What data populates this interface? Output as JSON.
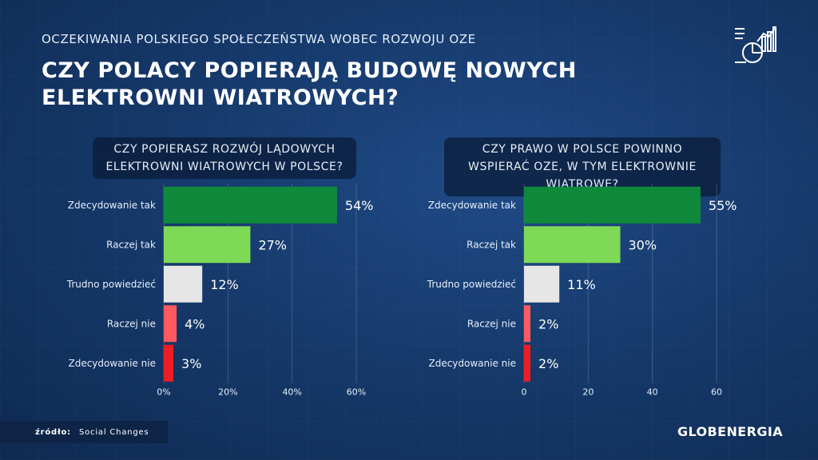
{
  "header": {
    "subtitle": "OCZEKIWANIA POLSKIEGO SPOŁECZEŃSTWA WOBEC ROZWOJU OZE",
    "title": "CZY POLACY POPIERAJĄ BUDOWĘ NOWYCH ELEKTROWNI WIATROWYCH?",
    "icon": "chart-report-icon"
  },
  "chart_data": [
    {
      "type": "bar",
      "orientation": "horizontal",
      "title": "CZY POPIERASZ ROZWÓJ LĄDOWYCH ELEKTROWNI WIATROWYCH W POLSCE?",
      "categories": [
        "Zdecydowanie tak",
        "Raczej tak",
        "Trudno powiedzieć",
        "Raczej nie",
        "Zdecydowanie nie"
      ],
      "values": [
        54,
        27,
        12,
        4,
        3
      ],
      "value_labels": [
        "54%",
        "27%",
        "12%",
        "4%",
        "3%"
      ],
      "colors": [
        "#0f8a3c",
        "#7ed957",
        "#e6e6e6",
        "#ff5a5f",
        "#ee1d23"
      ],
      "xlim": [
        0,
        60
      ],
      "xticks": [
        0,
        20,
        40,
        60
      ],
      "xtick_labels": [
        "0%",
        "20%",
        "40%",
        "60%"
      ],
      "grid": true
    },
    {
      "type": "bar",
      "orientation": "horizontal",
      "title": "CZY PRAWO W POLSCE POWINNO WSPIERAĆ OZE, W TYM ELEKTROWNIE WIATROWE?",
      "categories": [
        "Zdecydowanie tak",
        "Raczej tak",
        "Trudno powiedzieć",
        "Raczej nie",
        "Zdecydowanie nie"
      ],
      "values": [
        55,
        30,
        11,
        2,
        2
      ],
      "value_labels": [
        "55%",
        "30%",
        "11%",
        "2%",
        "2%"
      ],
      "colors": [
        "#0f8a3c",
        "#7ed957",
        "#e6e6e6",
        "#ff5a5f",
        "#ee1d23"
      ],
      "xlim": [
        0,
        60
      ],
      "xticks": [
        0,
        20,
        40,
        60
      ],
      "xtick_labels": [
        "0",
        "20",
        "40",
        "60"
      ],
      "grid": true
    }
  ],
  "footer": {
    "source_label": "źródło:",
    "source_value": "Social Changes",
    "brand": "GLOBENERGIA"
  }
}
